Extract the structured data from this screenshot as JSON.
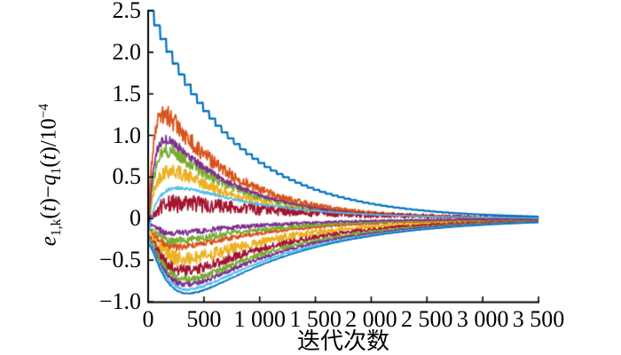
{
  "chart_data": {
    "type": "line",
    "title": "",
    "xlabel": "迭代次数",
    "ylabel": "e1,k(t)−q1(t)/10−4",
    "ylabel_segments": [
      {
        "text": "e",
        "style": "italic"
      },
      {
        "text": "1,k",
        "style": "sub"
      },
      {
        "text": "(",
        "style": "normal"
      },
      {
        "text": "t",
        "style": "italic"
      },
      {
        "text": ")−",
        "style": "normal"
      },
      {
        "text": "q",
        "style": "italic"
      },
      {
        "text": "1",
        "style": "sub"
      },
      {
        "text": "(",
        "style": "normal"
      },
      {
        "text": "t",
        "style": "italic"
      },
      {
        "text": ")/10",
        "style": "normal"
      },
      {
        "text": "−4",
        "style": "sup"
      }
    ],
    "xlim": [
      0,
      3500
    ],
    "ylim": [
      -1.0,
      2.5
    ],
    "grid": false,
    "legend": null,
    "x_tick_values": [
      0,
      500,
      1000,
      1500,
      2000,
      2500,
      3000,
      3500
    ],
    "x_tick_labels": [
      "0",
      "500",
      "1 000",
      "1 500",
      "2 000",
      "2 500",
      "3 000",
      "3 500"
    ],
    "y_tick_values": [
      2.5,
      2.0,
      1.5,
      1.0,
      0.5,
      0,
      -0.5,
      -1.0
    ],
    "y_tick_labels": [
      "2.5",
      "2.0",
      "1.5",
      "1.0",
      "0.5",
      "0",
      "−0.5",
      "−1.0"
    ],
    "axis_color": "#000000",
    "palette": {
      "blue": "#0072BD",
      "orange": "#D95319",
      "yellow": "#EDB120",
      "purple": "#7E2F8E",
      "green": "#77AC30",
      "cyan": "#4DBEEE",
      "darkred": "#A2142F"
    },
    "description": "Tracking-error curves e1,k(t)-q1(t) over iteration count: a smooth first-iteration curve decays from 2.5e-4 to 0; later noisy iteration curves fan out from about -0.2e-4 to peaks between +1.25e-4 and -0.9e-4 near iterations 150-420, then all converge to 0 by about 3000 iterations.",
    "series": [
      {
        "name": "iter-yellow-pos",
        "color": "yellow",
        "shape": "rise_decay",
        "peak": 0.58,
        "rise": 85,
        "tau": 700,
        "start": -0.15,
        "noise": 0.12
      },
      {
        "name": "iter-green-pos",
        "color": "green",
        "shape": "rise_decay",
        "peak": 0.82,
        "rise": 75,
        "tau": 660,
        "start": -0.2,
        "noise": 0.11
      },
      {
        "name": "iter-purple-pos",
        "color": "purple",
        "shape": "rise_decay",
        "peak": 0.95,
        "rise": 65,
        "tau": 650,
        "start": -0.15,
        "noise": 0.07
      },
      {
        "name": "iter-orange-pos",
        "color": "orange",
        "shape": "rise_decay",
        "peak": 1.25,
        "rise": 55,
        "tau": 640,
        "start": -0.1,
        "noise": 0.16
      },
      {
        "name": "iter-yellow-neg",
        "color": "yellow",
        "shape": "rise_decay",
        "peak": -0.49,
        "rise": 170,
        "tau": 950,
        "start": -0.15,
        "noise": 0.12
      },
      {
        "name": "iter-darkred-neg",
        "color": "darkred",
        "shape": "rise_decay",
        "peak": -0.63,
        "rise": 180,
        "tau": 960,
        "start": -0.2,
        "noise": 0.09
      },
      {
        "name": "iter-green-neg2",
        "color": "green",
        "shape": "rise_decay",
        "peak": -0.73,
        "rise": 185,
        "tau": 980,
        "start": -0.2,
        "noise": 0.06
      },
      {
        "name": "iter-purple-neg2",
        "color": "purple",
        "shape": "rise_decay",
        "peak": -0.79,
        "rise": 190,
        "tau": 990,
        "start": -0.25,
        "noise": 0.04
      },
      {
        "name": "iter-orange-neg",
        "color": "orange",
        "shape": "rise_decay",
        "peak": -0.34,
        "rise": 130,
        "tau": 920,
        "start": -0.1,
        "noise": 0.05
      },
      {
        "name": "iter-green-neg1",
        "color": "green",
        "shape": "rise_decay",
        "peak": -0.27,
        "rise": 120,
        "tau": 900,
        "start": -0.1,
        "noise": 0.06
      },
      {
        "name": "iter-purple-neg1",
        "color": "purple",
        "shape": "rise_decay",
        "peak": -0.17,
        "rise": 110,
        "tau": 900,
        "start": -0.05,
        "noise": 0.05
      },
      {
        "name": "iter-cyan-neg",
        "color": "cyan",
        "shape": "rise_decay",
        "peak": -0.85,
        "rise": 195,
        "tau": 1000,
        "start": -0.25,
        "noise": 0.02
      },
      {
        "name": "iter-blue-neg",
        "color": "blue",
        "shape": "rise_decay",
        "peak": -0.9,
        "rise": 200,
        "tau": 1000,
        "start": -0.3,
        "noise": 0.01
      },
      {
        "name": "iter-darkred-mid",
        "color": "darkred",
        "shape": "rise_decay",
        "peak": 0.18,
        "rise": 150,
        "tau": 1100,
        "start": -0.05,
        "noise": 0.13
      },
      {
        "name": "iter-cyan-pos",
        "color": "cyan",
        "shape": "rise_decay",
        "peak": 0.37,
        "rise": 140,
        "tau": 800,
        "start": -0.2,
        "noise": 0.025
      },
      {
        "name": "iter-1-smooth",
        "color": "blue",
        "shape": "decay",
        "peak": 2.5,
        "rise": 0,
        "tau": 750,
        "start": 2.5,
        "noise": 0.006,
        "step": 55
      }
    ]
  }
}
